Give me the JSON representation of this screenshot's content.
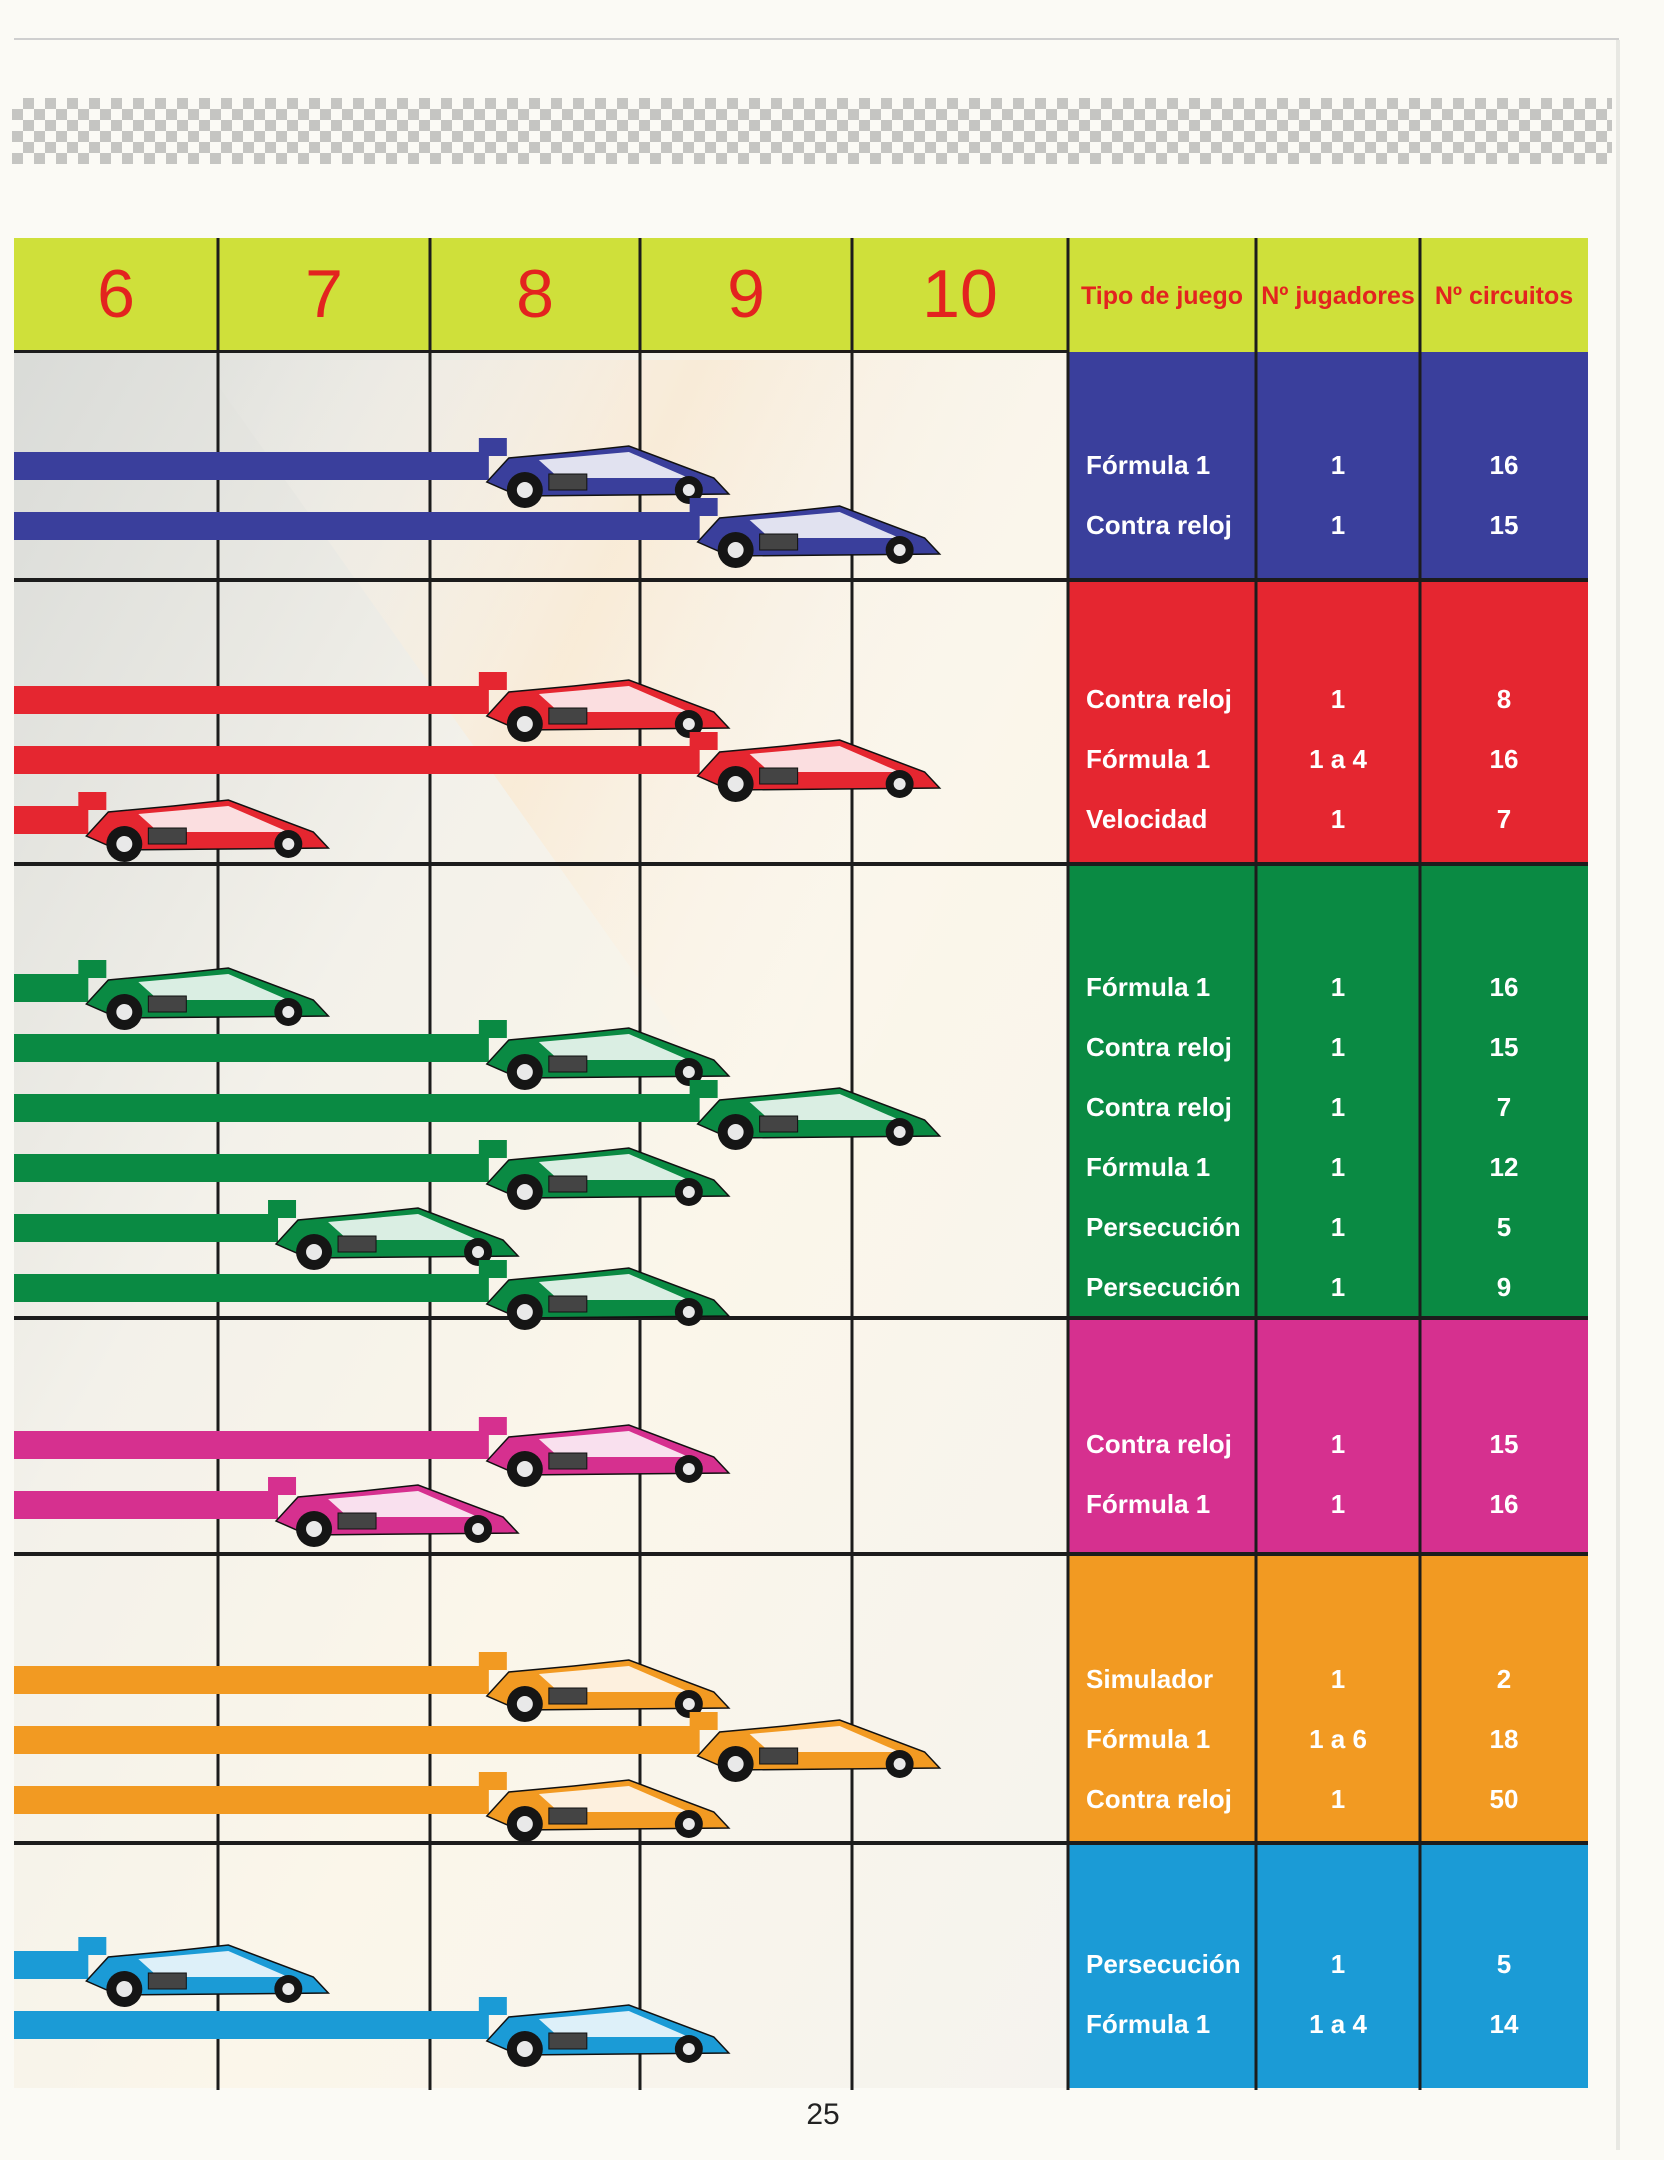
{
  "header": {
    "levels": [
      "6",
      "7",
      "8",
      "9",
      "10"
    ],
    "tipo_label": "Tipo de juego",
    "jugadores_label": "Nº jugadores",
    "circuitos_label": "Nº circuitos"
  },
  "page_number": "25",
  "groups": [
    {
      "color": "#3a3f9c",
      "rows": [
        {
          "tipo": "Fórmula 1",
          "jugadores": "1",
          "circuitos": "16",
          "level": 7.7
        },
        {
          "tipo": "Contra reloj",
          "jugadores": "1",
          "circuitos": "15",
          "level": 8.7
        }
      ]
    },
    {
      "color": "#e52630",
      "rows": [
        {
          "tipo": "Contra reloj",
          "jugadores": "1",
          "circuitos": "8",
          "level": 7.7
        },
        {
          "tipo": "Fórmula 1",
          "jugadores": "1 a 4",
          "circuitos": "16",
          "level": 8.7
        },
        {
          "tipo": "Velocidad",
          "jugadores": "1",
          "circuitos": "7",
          "level": 5.8
        }
      ]
    },
    {
      "color": "#0a8a43",
      "rows": [
        {
          "tipo": "Fórmula 1",
          "jugadores": "1",
          "circuitos": "16",
          "level": 5.8
        },
        {
          "tipo": "Contra reloj",
          "jugadores": "1",
          "circuitos": "15",
          "level": 7.7
        },
        {
          "tipo": "Contra reloj",
          "jugadores": "1",
          "circuitos": "7",
          "level": 8.7
        },
        {
          "tipo": "Fórmula 1",
          "jugadores": "1",
          "circuitos": "12",
          "level": 7.7
        },
        {
          "tipo": "Persecución",
          "jugadores": "1",
          "circuitos": "5",
          "level": 6.7
        },
        {
          "tipo": "Persecución",
          "jugadores": "1",
          "circuitos": "9",
          "level": 7.7
        }
      ]
    },
    {
      "color": "#d6308f",
      "rows": [
        {
          "tipo": "Contra reloj",
          "jugadores": "1",
          "circuitos": "15",
          "level": 7.7
        },
        {
          "tipo": "Fórmula 1",
          "jugadores": "1",
          "circuitos": "16",
          "level": 6.7
        }
      ]
    },
    {
      "color": "#f29a22",
      "rows": [
        {
          "tipo": "Simulador",
          "jugadores": "1",
          "circuitos": "2",
          "level": 7.7
        },
        {
          "tipo": "Fórmula 1",
          "jugadores": "1 a 6",
          "circuitos": "18",
          "level": 8.7
        },
        {
          "tipo": "Contra reloj",
          "jugadores": "1",
          "circuitos": "50",
          "level": 7.7
        }
      ]
    },
    {
      "color": "#1b9bd6",
      "rows": [
        {
          "tipo": "Persecución",
          "jugadores": "1",
          "circuitos": "5",
          "level": 5.8
        },
        {
          "tipo": "Fórmula 1",
          "jugadores": "1 a 4",
          "circuitos": "14",
          "level": 7.7
        }
      ]
    }
  ]
}
